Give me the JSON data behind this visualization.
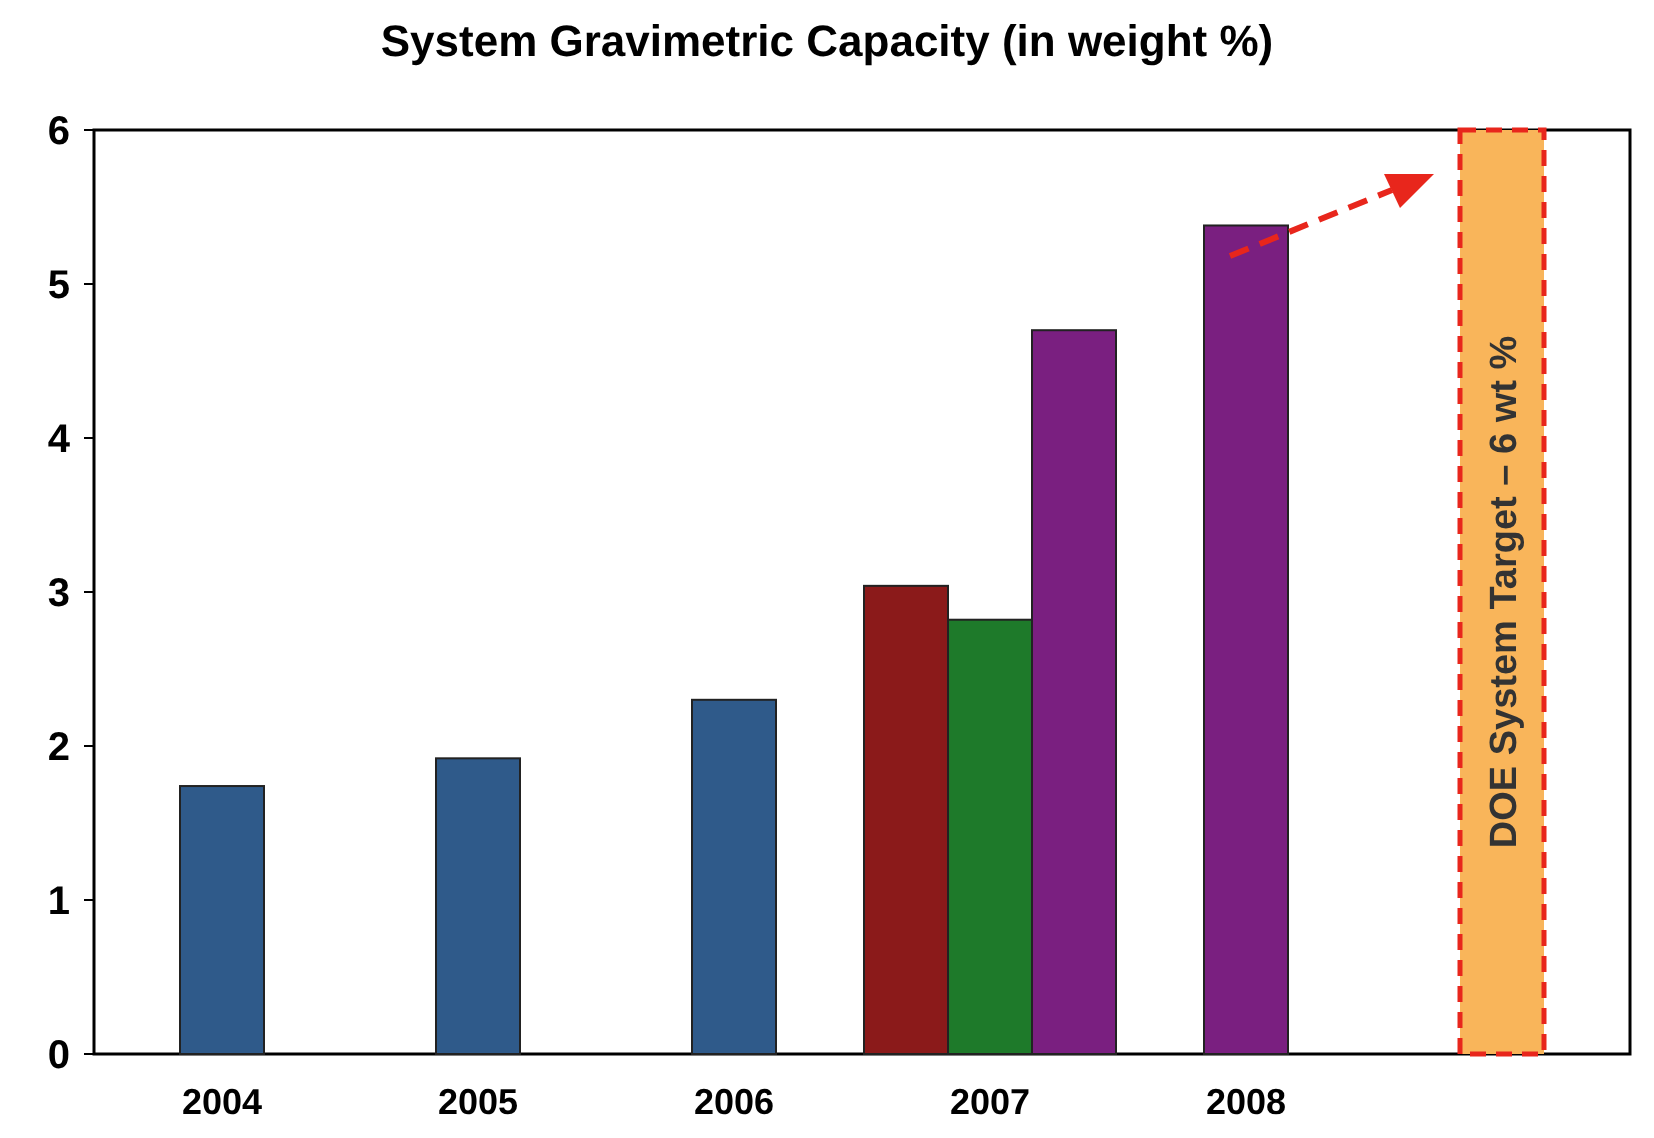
{
  "chart_data": {
    "type": "bar",
    "title": "System Gravimetric Capacity (in weight %)",
    "categories": [
      "2004",
      "2005",
      "2006",
      "2007",
      "2008",
      null
    ],
    "series": [
      {
        "color": "#2f5a8a",
        "values": [
          1.74,
          1.92,
          2.3,
          null,
          null,
          null
        ]
      },
      {
        "color": "#8b1a1a",
        "values": [
          null,
          null,
          null,
          3.04,
          null,
          null
        ]
      },
      {
        "color": "#1e7a2a",
        "values": [
          null,
          null,
          null,
          2.82,
          null,
          null
        ]
      },
      {
        "color": "#7a1f80",
        "values": [
          null,
          null,
          null,
          4.7,
          5.38,
          null
        ]
      },
      {
        "color": "#f9b55a",
        "values": [
          null,
          null,
          null,
          null,
          null,
          6
        ]
      }
    ],
    "ylim": [
      0,
      6
    ],
    "yticks": [
      0,
      1,
      2,
      3,
      4,
      5,
      6
    ],
    "grid": false,
    "annotations": [
      "DOE System Target – 6 wt %"
    ]
  }
}
